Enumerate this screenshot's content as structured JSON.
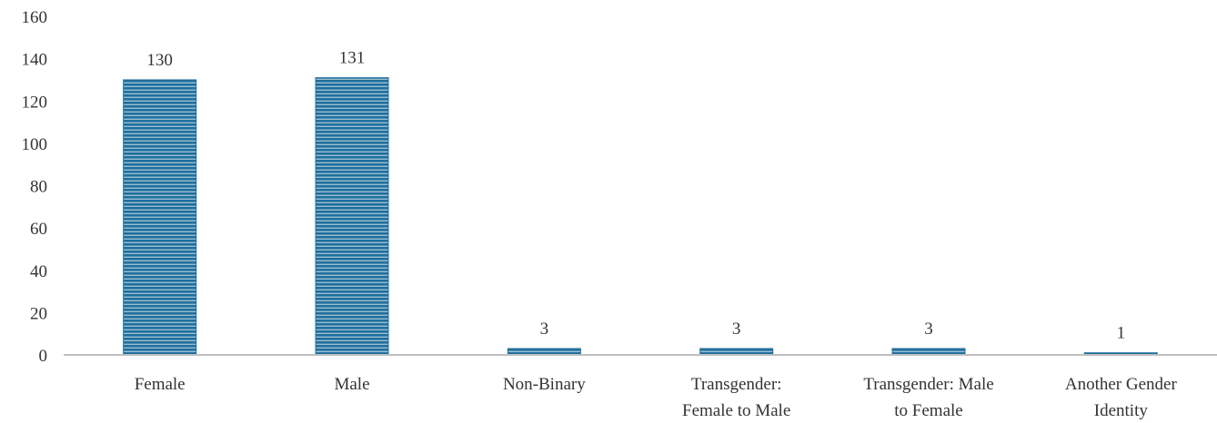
{
  "chart_data": {
    "type": "bar",
    "categories": [
      [
        "Female"
      ],
      [
        "Male"
      ],
      [
        "Non-Binary"
      ],
      [
        "Transgender:",
        "Female to Male"
      ],
      [
        "Transgender: Male",
        "to Female"
      ],
      [
        "Another Gender",
        "Identity"
      ]
    ],
    "values": [
      130,
      131,
      3,
      3,
      3,
      1
    ],
    "data_labels": [
      "130",
      "131",
      "3",
      "3",
      "3",
      "1"
    ],
    "yticks": [
      "0",
      "20",
      "40",
      "60",
      "80",
      "100",
      "120",
      "140",
      "160"
    ],
    "ylim": [
      0,
      160
    ],
    "title": "",
    "xlabel": "",
    "ylabel": "",
    "grid": false,
    "legend": "none"
  },
  "colors": {
    "bar_fill": "#1f6f9c",
    "bar_stripe": "#ffffff",
    "axis_line": "#bfbfbf",
    "text": "#333333"
  }
}
